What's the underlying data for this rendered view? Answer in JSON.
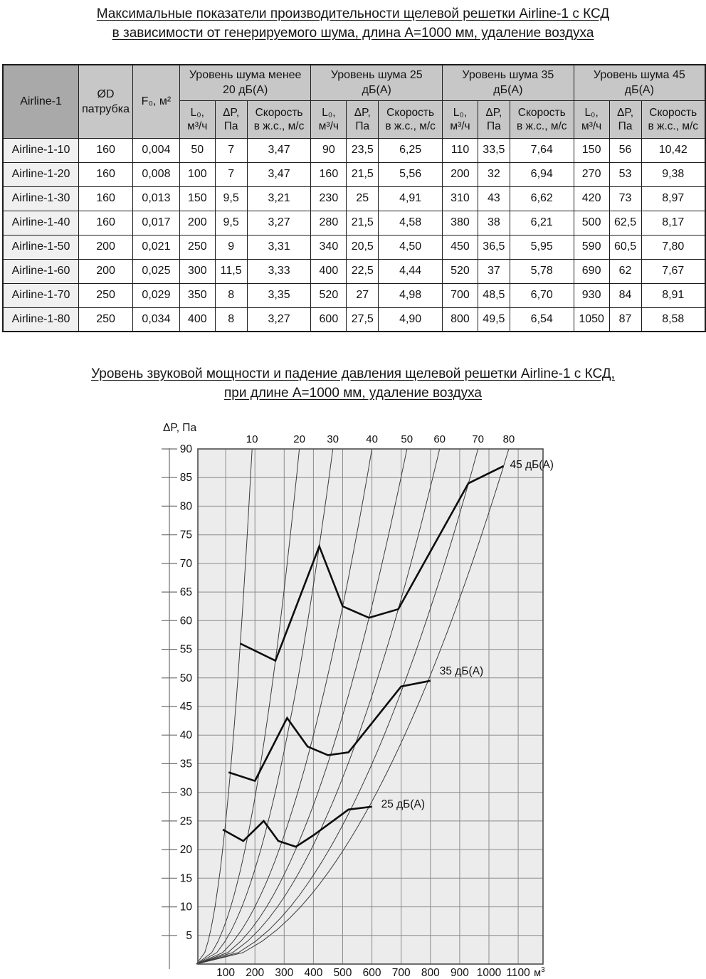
{
  "page": {
    "title1_line1": "Максимальные показатели производительности щелевой решетки Airline-1 с КСД",
    "title1_line2": "в зависимости от генерируемого шума, длина А=1000 мм, удаление воздуха",
    "title2_line1": "Уровень звуковой мощности и падение давления щелевой решетки Airline-1 с КСД,",
    "title2_line2": "при длине А=1000 мм, удаление воздуха"
  },
  "table": {
    "headers": {
      "model": "Airline-1",
      "diameter": "ØD\nпатрубка",
      "area": "F₀, м²"
    },
    "groups": [
      "Уровень шума менее\n20 дБ(А)",
      "Уровень шума 25\nдБ(А)",
      "Уровень шума 35\nдБ(А)",
      "Уровень шума 45\nдБ(А)"
    ],
    "sub_headers": [
      "L₀,\nм³/ч",
      "ΔP,\nПа",
      "Скорость\nв ж.с., м/с"
    ],
    "rows": [
      {
        "model": "Airline-1-10",
        "values": [
          "160",
          "0,004",
          "50",
          "7",
          "3,47",
          "90",
          "23,5",
          "6,25",
          "110",
          "33,5",
          "7,64",
          "150",
          "56",
          "10,42"
        ]
      },
      {
        "model": "Airline-1-20",
        "values": [
          "160",
          "0,008",
          "100",
          "7",
          "3,47",
          "160",
          "21,5",
          "5,56",
          "200",
          "32",
          "6,94",
          "270",
          "53",
          "9,38"
        ]
      },
      {
        "model": "Airline-1-30",
        "values": [
          "160",
          "0,013",
          "150",
          "9,5",
          "3,21",
          "230",
          "25",
          "4,91",
          "310",
          "43",
          "6,62",
          "420",
          "73",
          "8,97"
        ]
      },
      {
        "model": "Airline-1-40",
        "values": [
          "160",
          "0,017",
          "200",
          "9,5",
          "3,27",
          "280",
          "21,5",
          "4,58",
          "380",
          "38",
          "6,21",
          "500",
          "62,5",
          "8,17"
        ]
      },
      {
        "model": "Airline-1-50",
        "values": [
          "200",
          "0,021",
          "250",
          "9",
          "3,31",
          "340",
          "20,5",
          "4,50",
          "450",
          "36,5",
          "5,95",
          "590",
          "60,5",
          "7,80"
        ]
      },
      {
        "model": "Airline-1-60",
        "values": [
          "200",
          "0,025",
          "300",
          "11,5",
          "3,33",
          "400",
          "22,5",
          "4,44",
          "520",
          "37",
          "5,78",
          "690",
          "62",
          "7,67"
        ]
      },
      {
        "model": "Airline-1-70",
        "values": [
          "250",
          "0,029",
          "350",
          "8",
          "3,35",
          "520",
          "27",
          "4,98",
          "700",
          "48,5",
          "6,70",
          "930",
          "84",
          "8,91"
        ]
      },
      {
        "model": "Airline-1-80",
        "values": [
          "250",
          "0,034",
          "400",
          "8",
          "3,27",
          "600",
          "27,5",
          "4,90",
          "800",
          "49,5",
          "6,54",
          "1050",
          "87",
          "8,58"
        ]
      }
    ]
  },
  "chart_data": {
    "type": "line",
    "title": "Уровень звуковой мощности и падение давления щелевой решетки Airline-1 с КСД, при длине А=1000 мм, удаление воздуха",
    "ylabel": "ΔP, Па",
    "x_unit": "м³",
    "xlim": [
      0,
      1185
    ],
    "ylim": [
      0,
      90
    ],
    "x_ticks": [
      100,
      200,
      300,
      400,
      500,
      600,
      700,
      800,
      900,
      1000,
      1100
    ],
    "y_ticks": [
      5,
      10,
      15,
      20,
      25,
      30,
      35,
      40,
      45,
      50,
      55,
      60,
      65,
      70,
      75,
      80,
      85,
      90
    ],
    "grid": true,
    "model_curves": [
      {
        "label": "10",
        "point": [
          150,
          56
        ]
      },
      {
        "label": "20",
        "point": [
          270,
          53
        ]
      },
      {
        "label": "30",
        "point": [
          420,
          73
        ]
      },
      {
        "label": "40",
        "point": [
          500,
          62.5
        ]
      },
      {
        "label": "50",
        "point": [
          590,
          60.5
        ]
      },
      {
        "label": "60",
        "point": [
          690,
          62
        ]
      },
      {
        "label": "70",
        "point": [
          930,
          84
        ]
      },
      {
        "label": "80",
        "point": [
          1050,
          87
        ]
      }
    ],
    "series": [
      {
        "name": "25 дБ(А)",
        "points": [
          [
            90,
            23.5
          ],
          [
            160,
            21.5
          ],
          [
            230,
            25
          ],
          [
            280,
            21.5
          ],
          [
            340,
            20.5
          ],
          [
            400,
            22.5
          ],
          [
            520,
            27
          ],
          [
            600,
            27.5
          ]
        ]
      },
      {
        "name": "35 дБ(А)",
        "points": [
          [
            110,
            33.5
          ],
          [
            200,
            32
          ],
          [
            310,
            43
          ],
          [
            380,
            38
          ],
          [
            450,
            36.5
          ],
          [
            520,
            37
          ],
          [
            700,
            48.5
          ],
          [
            800,
            49.5
          ]
        ]
      },
      {
        "name": "45 дБ(А)",
        "points": [
          [
            150,
            56
          ],
          [
            270,
            53
          ],
          [
            420,
            73
          ],
          [
            500,
            62.5
          ],
          [
            590,
            60.5
          ],
          [
            690,
            62
          ],
          [
            930,
            84
          ],
          [
            1050,
            87
          ]
        ]
      }
    ]
  }
}
